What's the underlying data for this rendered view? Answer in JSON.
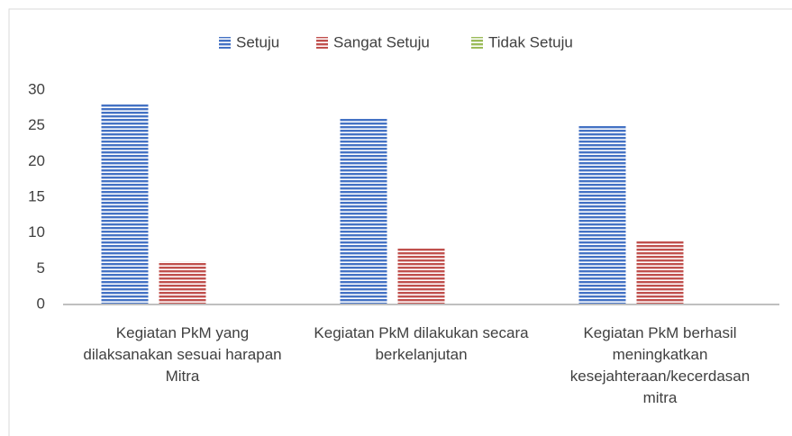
{
  "chart_data": {
    "type": "bar",
    "categories": [
      "Kegiatan PkM yang dilaksanakan sesuai harapan Mitra",
      "Kegiatan PkM dilakukan secara berkelanjutan",
      "Kegiatan PkM berhasil meningkatkan kesejahteraan/kecerdasan mitra"
    ],
    "series": [
      {
        "name": "Setuju",
        "color": "#4472c4",
        "values": [
          28,
          26,
          25
        ]
      },
      {
        "name": "Sangat Setuju",
        "color": "#c0504d",
        "values": [
          6,
          8,
          9
        ]
      },
      {
        "name": "Tidak Setuju",
        "color": "#9bbb59",
        "values": [
          0,
          0,
          0
        ]
      }
    ],
    "ylim": [
      0,
      30
    ],
    "yticks": [
      0,
      5,
      10,
      15,
      20,
      25,
      30
    ],
    "grid": false,
    "legend": "top"
  }
}
